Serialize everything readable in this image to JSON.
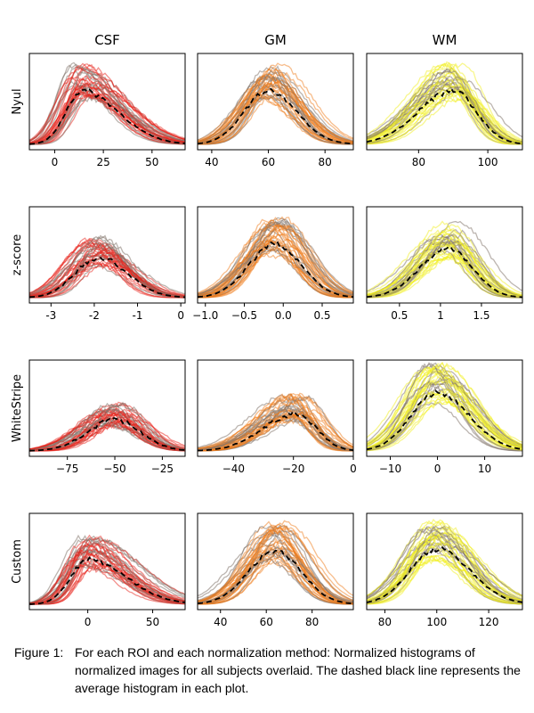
{
  "columns": [
    "CSF",
    "GM",
    "WM"
  ],
  "rows": [
    "Nyul",
    "z-score",
    "WhiteStripe",
    "Custom"
  ],
  "caption": {
    "label": "Figure 1:",
    "text": "For each ROI and each normalization method: Normalized histograms of normalized images for all subjects overlaid. The dashed black line represents the average histogram in each plot."
  },
  "colors": {
    "CSF": "#e8221a",
    "GM": "#ef7b1a",
    "WM": "#f2f01e",
    "gray": "#857870",
    "mean": "#000000"
  },
  "chart_data": [
    {
      "type": "line",
      "row": "Nyul",
      "roi": "CSF",
      "xlim": [
        -13,
        67
      ],
      "xticks": [
        0,
        25,
        50
      ],
      "mean_peak_x": 14,
      "x_range": [
        -10,
        65
      ],
      "peak_level": 0.6,
      "skew": 1.2,
      "sharp": 0
    },
    {
      "type": "line",
      "row": "Nyul",
      "roi": "GM",
      "xlim": [
        35,
        90
      ],
      "xticks": [
        40,
        60,
        80
      ],
      "mean_peak_x": 60,
      "x_range": [
        36,
        88
      ],
      "peak_level": 0.6,
      "skew": 1.0,
      "sharp": 0
    },
    {
      "type": "line",
      "row": "Nyul",
      "roi": "WM",
      "xlim": [
        65,
        110
      ],
      "xticks": [
        80,
        100
      ],
      "mean_peak_x": 90,
      "x_range": [
        66,
        108
      ],
      "peak_level": 0.6,
      "skew": 0.6,
      "sharp": 1
    },
    {
      "type": "line",
      "row": "z-score",
      "roi": "CSF",
      "xlim": [
        -3.5,
        0.1
      ],
      "xticks": [
        -3,
        -2,
        -1,
        0
      ],
      "mean_peak_x": -1.9,
      "x_range": [
        -3.4,
        0
      ],
      "peak_level": 0.45,
      "skew": 0.9,
      "sharp": 0
    },
    {
      "type": "line",
      "row": "z-score",
      "roi": "GM",
      "xlim": [
        -1.1,
        0.9
      ],
      "xticks": [
        -1.0,
        -0.5,
        0.0,
        0.5
      ],
      "tick_labels": [
        "−1.0",
        "−0.5",
        "0.0",
        "0.5"
      ],
      "mean_peak_x": -0.1,
      "x_range": [
        -1.05,
        0.85
      ],
      "peak_level": 0.6,
      "skew": 1.0,
      "sharp": 0
    },
    {
      "type": "line",
      "row": "z-score",
      "roi": "WM",
      "xlim": [
        0.1,
        2.0
      ],
      "xticks": [
        0.5,
        1.0,
        1.5
      ],
      "mean_peak_x": 1.1,
      "x_range": [
        0.15,
        1.95
      ],
      "peak_level": 0.55,
      "skew": 0.8,
      "sharp": 0
    },
    {
      "type": "line",
      "row": "WhiteStripe",
      "roi": "CSF",
      "xlim": [
        -95,
        -13
      ],
      "xticks": [
        -75,
        -50,
        -25
      ],
      "tick_labels": [
        "−75",
        "−50",
        "−25"
      ],
      "mean_peak_x": -50,
      "x_range": [
        -94,
        -15
      ],
      "peak_level": 0.35,
      "skew": 1.6,
      "sharp": 0
    },
    {
      "type": "line",
      "row": "WhiteStripe",
      "roi": "GM",
      "xlim": [
        -52,
        0
      ],
      "xticks": [
        -40,
        -20,
        0
      ],
      "tick_labels": [
        "−40",
        "−20",
        "0"
      ],
      "mean_peak_x": -19,
      "x_range": [
        -51,
        -1
      ],
      "peak_level": 0.42,
      "skew": 1.3,
      "sharp": 0
    },
    {
      "type": "line",
      "row": "WhiteStripe",
      "roi": "WM",
      "xlim": [
        -15,
        18
      ],
      "xticks": [
        -10,
        0,
        10
      ],
      "tick_labels": [
        "−10",
        "0",
        "10"
      ],
      "mean_peak_x": 0,
      "x_range": [
        -14,
        17
      ],
      "peak_level": 0.65,
      "skew": 1.0,
      "sharp": 1
    },
    {
      "type": "line",
      "row": "Custom",
      "roi": "CSF",
      "xlim": [
        -45,
        75
      ],
      "xticks": [
        0,
        50
      ],
      "mean_peak_x": 0,
      "x_range": [
        -35,
        70
      ],
      "peak_level": 0.5,
      "skew": 1.4,
      "sharp": 1
    },
    {
      "type": "line",
      "row": "Custom",
      "roi": "GM",
      "xlim": [
        30,
        98
      ],
      "xticks": [
        40,
        60,
        80
      ],
      "mean_peak_x": 64,
      "x_range": [
        31,
        96
      ],
      "peak_level": 0.6,
      "skew": 1.0,
      "sharp": 0
    },
    {
      "type": "line",
      "row": "Custom",
      "roi": "WM",
      "xlim": [
        73,
        133
      ],
      "xticks": [
        80,
        100,
        120
      ],
      "mean_peak_x": 100,
      "x_range": [
        74,
        132
      ],
      "peak_level": 0.62,
      "skew": 1.0,
      "sharp": 1
    }
  ]
}
